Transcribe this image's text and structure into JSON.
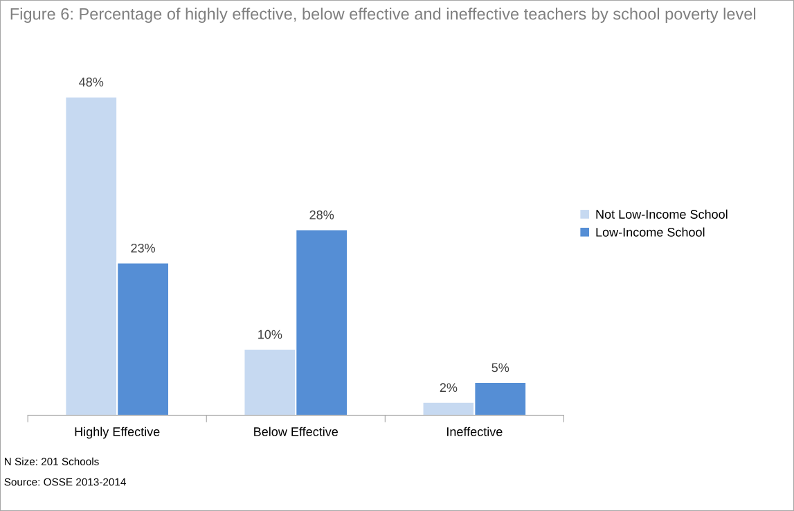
{
  "chart_data": {
    "type": "bar",
    "title": "Figure 6: Percentage of highly effective, below effective and ineffective teachers by school poverty level",
    "categories": [
      "Highly Effective",
      "Below Effective",
      "Ineffective"
    ],
    "series": [
      {
        "name": "Not Low-Income School",
        "color": "#c6d9f1",
        "values": [
          48,
          10,
          2
        ],
        "value_labels": [
          "48%",
          "10%",
          "2%"
        ]
      },
      {
        "name": "Low-Income School",
        "color": "#558ed5",
        "values": [
          23,
          28,
          5
        ],
        "value_labels": [
          "23%",
          "28%",
          "5%"
        ]
      }
    ],
    "legend": "right",
    "annotations": [
      "N Size: 201 Schools",
      "Source: OSSE 2013-2014"
    ]
  }
}
